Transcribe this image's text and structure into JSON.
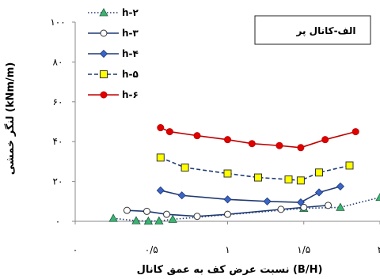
{
  "chart_data": {
    "type": "line",
    "xlabel": "نسبت عرض کف به عمق کانال (B/H)",
    "ylabel": "لنگر خمشی (kNm/m)",
    "xlim": [
      0,
      2
    ],
    "ylim": [
      0,
      100
    ],
    "x_ticks": [
      {
        "value": 0,
        "label": "۰"
      },
      {
        "value": 0.5,
        "label": "۰/۵"
      },
      {
        "value": 1,
        "label": "۱"
      },
      {
        "value": 1.5,
        "label": "۱/۵"
      },
      {
        "value": 2,
        "label": "۲"
      }
    ],
    "y_ticks": [
      {
        "value": 0,
        "label": "۰"
      },
      {
        "value": 20,
        "label": "۲۰"
      },
      {
        "value": 40,
        "label": "۴۰"
      },
      {
        "value": 60,
        "label": "۶۰"
      },
      {
        "value": 80,
        "label": "۸۰"
      },
      {
        "value": 100,
        "label": "۱۰۰"
      }
    ],
    "annotation": "الف-کانال پر",
    "grid": false,
    "legend_position": "top-left",
    "series": [
      {
        "name": "h-۲",
        "marker": "triangle",
        "marker_color": "#3cb371",
        "line_style": "dotted",
        "color": "#1f3a73",
        "x": [
          0.25,
          0.4,
          0.48,
          0.55,
          0.64,
          1.5,
          1.74,
          2.0
        ],
        "y": [
          1.5,
          0.3,
          0.1,
          0.2,
          1.0,
          6.5,
          7.0,
          12
        ]
      },
      {
        "name": "h-۳",
        "marker": "circle",
        "marker_color": "#ffffff",
        "line_style": "solid",
        "color": "#1f3a73",
        "x": [
          0.34,
          0.47,
          0.6,
          0.8,
          1.0,
          1.35,
          1.5,
          1.66
        ],
        "y": [
          5.5,
          5.0,
          3.5,
          2.5,
          3.5,
          6.0,
          7.0,
          8.0
        ]
      },
      {
        "name": "h-۴",
        "marker": "diamond",
        "marker_color": "#3a64c8",
        "line_style": "solid",
        "color": "#1f3a73",
        "x": [
          0.56,
          0.7,
          1.0,
          1.26,
          1.48,
          1.6,
          1.74
        ],
        "y": [
          15.5,
          13.0,
          11.0,
          10.0,
          9.5,
          14.5,
          17.5
        ]
      },
      {
        "name": "h-۵",
        "marker": "square",
        "marker_color": "#ffff00",
        "line_style": "dashed",
        "color": "#1f3a73",
        "x": [
          0.56,
          0.72,
          1.0,
          1.2,
          1.4,
          1.48,
          1.6,
          1.8
        ],
        "y": [
          32.0,
          27.0,
          24.0,
          22.0,
          21.0,
          20.5,
          24.5,
          28.0
        ]
      },
      {
        "name": "h-۶",
        "marker": "circle",
        "marker_color": "#e00000",
        "line_style": "solid",
        "color": "#c00000",
        "x": [
          0.56,
          0.62,
          0.8,
          1.0,
          1.16,
          1.34,
          1.48,
          1.64,
          1.84
        ],
        "y": [
          47.0,
          45.0,
          43.0,
          41.0,
          39.0,
          38.0,
          37.0,
          41.0,
          45.0
        ]
      }
    ]
  }
}
